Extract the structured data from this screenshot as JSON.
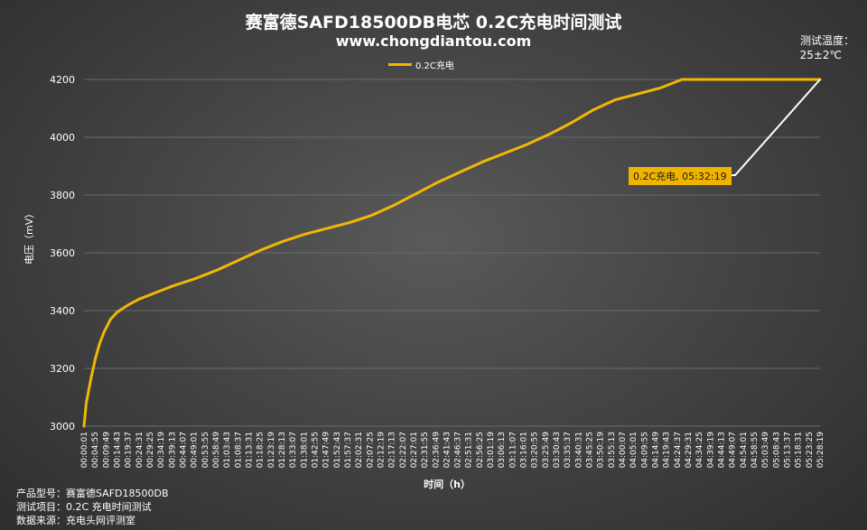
{
  "header": {
    "title": "赛富德SAFD18500DB电芯 0.2C充电时间测试",
    "subtitle": "www.chongdiantou.com",
    "temp_label": "测试温度：",
    "temp_value": "25±2℃"
  },
  "footer": {
    "line1": "产品型号：赛富德SAFD18500DB",
    "line2": "测试项目：0.2C 充电时间测试",
    "line3": "数据来源：充电头网评测室"
  },
  "colors": {
    "series": "#f2b705",
    "callout_bg": "#f0b400",
    "grid": "#6a6a6a",
    "connector": "#ffffff"
  },
  "chart_data": {
    "type": "line",
    "xlabel": "时间（h）",
    "ylabel": "电压（mV）",
    "ylim": [
      3000,
      4200
    ],
    "yticks": [
      3000,
      3200,
      3400,
      3600,
      3800,
      4000,
      4200
    ],
    "grid": true,
    "legend": "top-center",
    "annotation": "0.2C充电, 05:32:19",
    "series": [
      {
        "name": "0.2C充电",
        "x_minutes": [
          0,
          1,
          3,
          5,
          7,
          9,
          12,
          15,
          20,
          25,
          30,
          40,
          50,
          60,
          70,
          80,
          90,
          100,
          110,
          120,
          130,
          140,
          150,
          160,
          170,
          180,
          190,
          200,
          210,
          220,
          230,
          240,
          250,
          260,
          270,
          280,
          285,
          290,
          300,
          310,
          320,
          332.3
        ],
        "values": [
          3000,
          3080,
          3160,
          3230,
          3285,
          3325,
          3370,
          3395,
          3420,
          3440,
          3455,
          3485,
          3510,
          3540,
          3575,
          3610,
          3640,
          3665,
          3685,
          3705,
          3730,
          3765,
          3805,
          3845,
          3880,
          3915,
          3945,
          3975,
          4010,
          4050,
          4095,
          4130,
          4150,
          4170,
          4200,
          4200,
          4200,
          4200,
          4200,
          4200,
          4200,
          4200
        ]
      }
    ],
    "x_ticks": [
      "00:00:01",
      "00:04:55",
      "00:09:49",
      "00:14:43",
      "00:19:37",
      "00:24:31",
      "00:29:25",
      "00:34:19",
      "00:39:13",
      "00:44:07",
      "00:49:01",
      "00:53:55",
      "00:58:49",
      "01:03:43",
      "01:08:37",
      "01:13:31",
      "01:18:25",
      "01:23:19",
      "01:28:13",
      "01:33:07",
      "01:38:01",
      "01:42:55",
      "01:47:49",
      "01:52:43",
      "01:57:37",
      "02:02:31",
      "02:07:25",
      "02:12:19",
      "02:17:13",
      "02:22:07",
      "02:27:01",
      "02:31:55",
      "02:36:49",
      "02:41:43",
      "02:46:37",
      "02:51:31",
      "02:56:25",
      "03:01:19",
      "03:06:13",
      "03:11:07",
      "03:16:01",
      "03:20:55",
      "03:25:49",
      "03:30:43",
      "03:35:37",
      "03:40:31",
      "03:45:25",
      "03:50:19",
      "03:55:13",
      "04:00:07",
      "04:05:01",
      "04:09:55",
      "04:14:49",
      "04:19:43",
      "04:24:37",
      "04:29:31",
      "04:34:25",
      "04:39:19",
      "04:44:13",
      "04:49:07",
      "04:54:01",
      "04:58:55",
      "05:03:49",
      "05:08:43",
      "05:13:37",
      "05:18:31",
      "05:23:25",
      "05:28:19"
    ]
  }
}
